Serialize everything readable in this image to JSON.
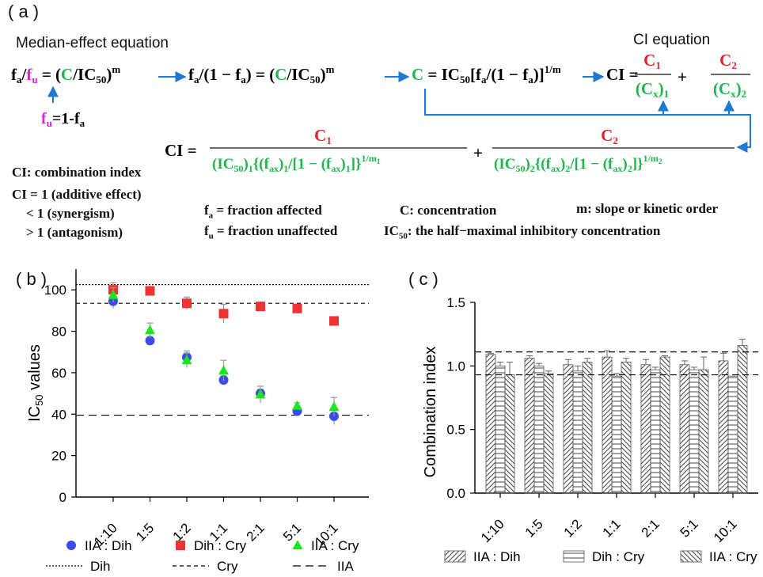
{
  "panel_a": {
    "label": "( a )",
    "median_title": "Median-effect equation",
    "ci_title": "CI equation",
    "eq_fa": "f",
    "fu_note": "f",
    "fu_note_rhs": "=1-f",
    "ci_lhs": "CI =",
    "num1": "C",
    "num2": "C",
    "den1": "(IC",
    "den2": "(IC",
    "legend_ci": "CI: combination index",
    "legend_ci1": "CI = 1 (additive effect)",
    "legend_lt1": "< 1 (synergism)",
    "legend_gt1": "> 1 (antagonism)",
    "def_fa": "f",
    "def_fa_text": " = fraction affected",
    "def_fu": "f",
    "def_fu_text": " = fraction unaffected",
    "def_c": "C: concentration",
    "def_m": "m: slope or kinetic order",
    "def_ic50": "IC",
    "def_ic50_text": ": the half−maximal inhibitory concentration",
    "colors": {
      "red": "#e8202a",
      "green": "#1db64a",
      "magenta": "#e619e6",
      "blue": "#1f78d1"
    }
  },
  "chart_data": [
    {
      "type": "scatter",
      "panel_label": "( b )",
      "ylabel": "IC50 values",
      "ylim": [
        0,
        110
      ],
      "yticks": [
        0,
        20,
        40,
        60,
        80,
        100
      ],
      "categories": [
        "1:10",
        "1:5",
        "1:2",
        "1:1",
        "2:1",
        "5:1",
        "10:1"
      ],
      "series": [
        {
          "name": "IIA : Dih",
          "marker": "circle",
          "color": "#3b4de8",
          "values": [
            94.5,
            75.5,
            67.5,
            56.5,
            50,
            41.5,
            39
          ],
          "errors": [
            3.5,
            1.5,
            3,
            2,
            2,
            1.5,
            4
          ]
        },
        {
          "name": "Dih : Cry",
          "marker": "square",
          "color": "#f03232",
          "values": [
            100,
            99.5,
            93.5,
            88.5,
            92,
            91,
            85
          ],
          "errors": [
            3.5,
            1.5,
            3,
            4.5,
            1.5,
            1.5,
            1
          ]
        },
        {
          "name": "IIA : Cry",
          "marker": "triangle",
          "color": "#1ee61e",
          "values": [
            97.5,
            80.5,
            66,
            61,
            49.5,
            44,
            43.5
          ],
          "errors": [
            3.5,
            3.5,
            3.5,
            5,
            4,
            1.5,
            4.5
          ]
        }
      ],
      "reference_lines": [
        {
          "name": "Dih",
          "value": 102.5,
          "style": "dotted"
        },
        {
          "name": "Cry",
          "value": 93.5,
          "style": "dashed"
        },
        {
          "name": "IIA",
          "value": 39.5,
          "style": "long-dashed"
        }
      ],
      "legend_placement": "bottom"
    },
    {
      "type": "bar",
      "panel_label": "( c )",
      "ylabel": "Combination index",
      "ylim": [
        0,
        1.5
      ],
      "yticks": [
        "0.0",
        "0.5",
        "1.0",
        "1.5"
      ],
      "categories": [
        "1:10",
        "1:5",
        "1:2",
        "1:1",
        "2:1",
        "5:1",
        "10:1"
      ],
      "series": [
        {
          "name": "IIA : Dih",
          "pattern": "diagonal-right",
          "values": [
            1.09,
            1.06,
            1.01,
            1.07,
            1.01,
            1.01,
            1.04
          ],
          "errors": [
            0.01,
            0.02,
            0.04,
            0.05,
            0.04,
            0.03,
            0.06
          ]
        },
        {
          "name": "Dih : Cry",
          "pattern": "horizontal",
          "values": [
            1.0,
            1.0,
            0.96,
            0.92,
            0.97,
            0.97,
            0.92
          ],
          "errors": [
            0.03,
            0.02,
            0.04,
            0.02,
            0.02,
            0.02,
            0.0
          ]
        },
        {
          "name": "IIA : Cry",
          "pattern": "diagonal-left",
          "values": [
            0.93,
            0.94,
            1.03,
            1.03,
            1.07,
            0.97,
            1.16
          ],
          "errors": [
            0.1,
            0.02,
            0.03,
            0.03,
            0.01,
            0.1,
            0.05
          ]
        }
      ],
      "reference_lines": [
        1.11,
        0.93
      ],
      "legend_placement": "bottom"
    }
  ]
}
